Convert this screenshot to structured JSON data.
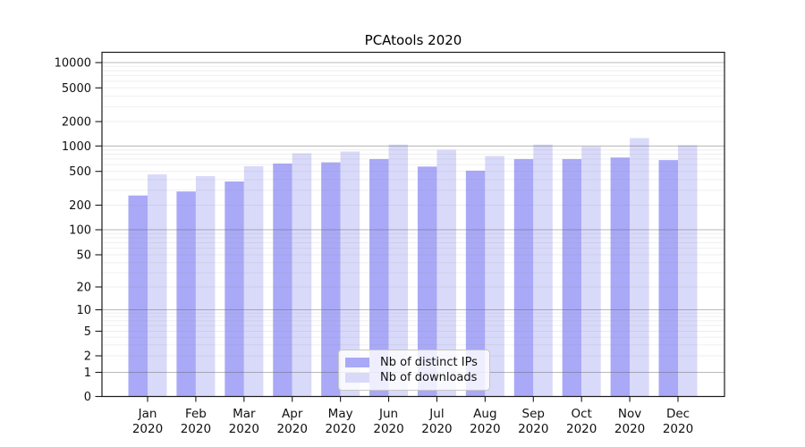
{
  "chart_data": {
    "type": "bar",
    "title": "PCAtools 2020",
    "categories": [
      "Jan",
      "Feb",
      "Mar",
      "Apr",
      "May",
      "Jun",
      "Jul",
      "Aug",
      "Sep",
      "Oct",
      "Nov",
      "Dec"
    ],
    "year_label": "2020",
    "series": [
      {
        "name": "Nb of distinct IPs",
        "color": "#a9a9f7",
        "values": [
          260,
          290,
          380,
          620,
          640,
          700,
          570,
          510,
          700,
          700,
          730,
          680
        ]
      },
      {
        "name": "Nb of downloads",
        "color": "#d9d9fa",
        "values": [
          460,
          440,
          575,
          820,
          860,
          1040,
          900,
          760,
          1040,
          980,
          1250,
          1020
        ]
      }
    ],
    "y_ticks": [
      0,
      1,
      2,
      5,
      10,
      20,
      50,
      100,
      200,
      500,
      1000,
      2000,
      5000,
      10000
    ],
    "y_scale": "symlog",
    "ylim": [
      0,
      10000
    ],
    "grid": "horizontal",
    "legend": {
      "position": "inside-bottom-center",
      "entries": [
        "Nb of distinct IPs",
        "Nb of downloads"
      ]
    }
  }
}
